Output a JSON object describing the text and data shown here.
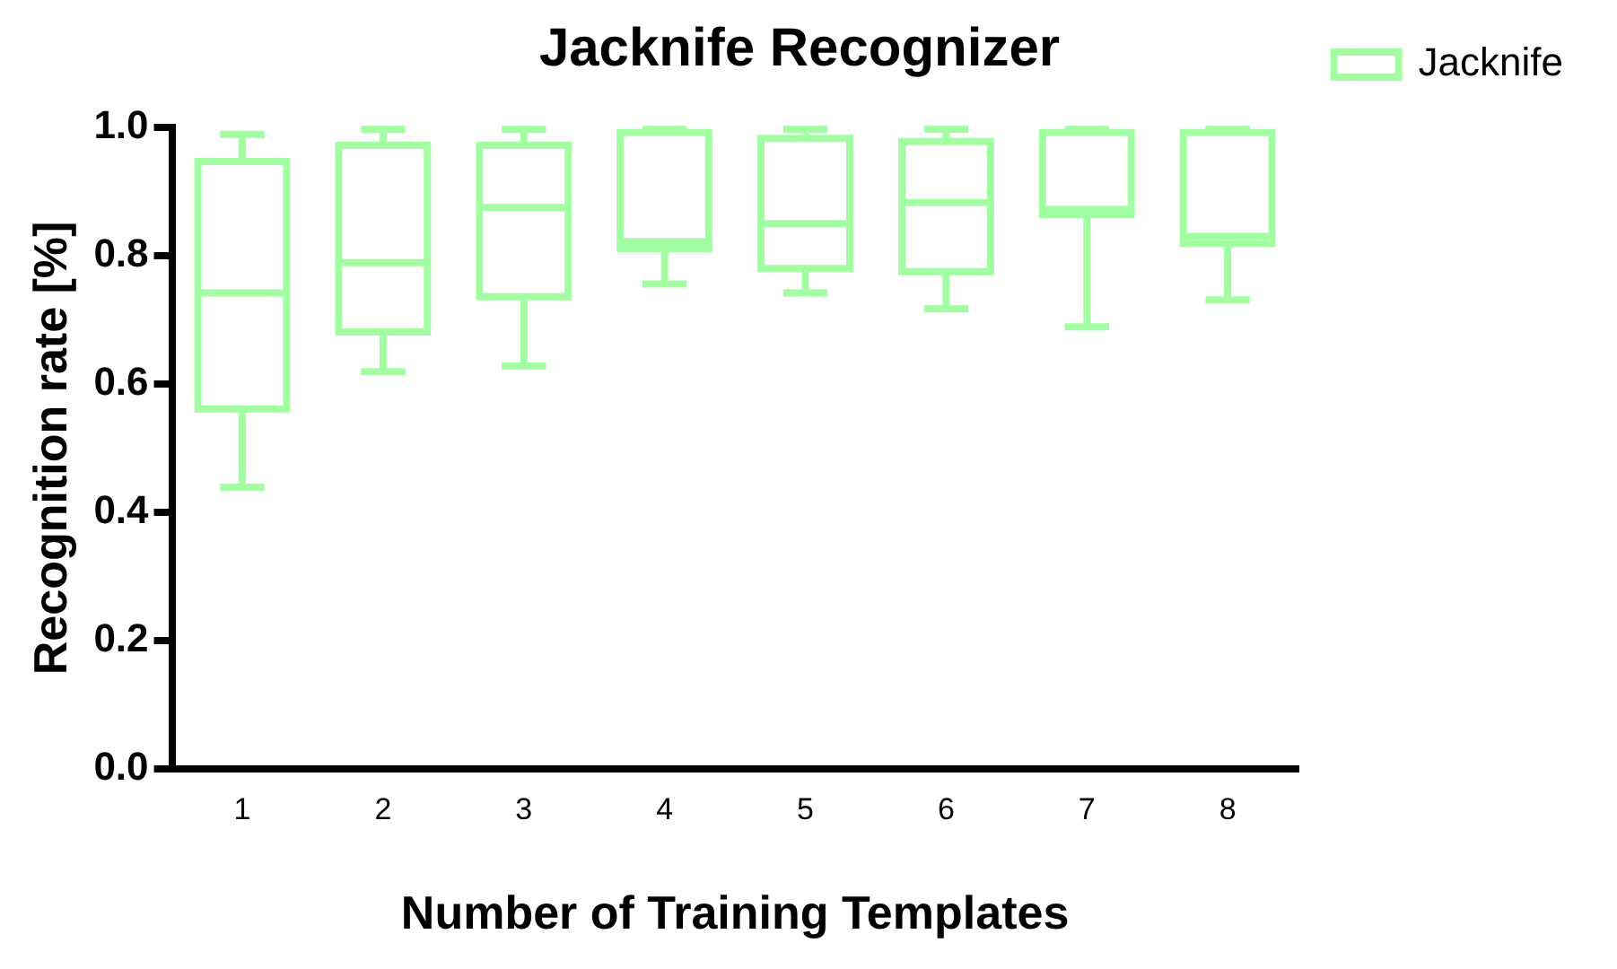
{
  "chart_data": {
    "type": "box",
    "title": "Jacknife Recognizer",
    "xlabel": "Number of Training Templates",
    "ylabel": "Recognition rate [%]",
    "categories": [
      "1",
      "2",
      "3",
      "4",
      "5",
      "6",
      "7",
      "8"
    ],
    "series": [
      {
        "name": "Jacknife",
        "color": "#a3fda3",
        "boxes": [
          {
            "low": 0.439,
            "q1": 0.561,
            "median": 0.742,
            "q3": 0.947,
            "high": 0.989
          },
          {
            "low": 0.619,
            "q1": 0.681,
            "median": 0.789,
            "q3": 0.972,
            "high": 0.997
          },
          {
            "low": 0.628,
            "q1": 0.736,
            "median": 0.875,
            "q3": 0.972,
            "high": 0.997
          },
          {
            "low": 0.756,
            "q1": 0.811,
            "median": 0.822,
            "q3": 0.992,
            "high": 0.997
          },
          {
            "low": 0.742,
            "q1": 0.78,
            "median": 0.85,
            "q3": 0.983,
            "high": 0.997
          },
          {
            "low": 0.717,
            "q1": 0.775,
            "median": 0.883,
            "q3": 0.978,
            "high": 0.997
          },
          {
            "low": 0.689,
            "q1": 0.864,
            "median": 0.872,
            "q3": 0.992,
            "high": 0.997
          },
          {
            "low": 0.731,
            "q1": 0.819,
            "median": 0.83,
            "q3": 0.992,
            "high": 0.997
          }
        ]
      }
    ],
    "ylim": [
      0,
      1
    ],
    "yticks": [
      {
        "value": 0,
        "label": "0.0"
      },
      {
        "value": 0.2,
        "label": "0.2"
      },
      {
        "value": 0.4,
        "label": "0.4"
      },
      {
        "value": 0.6,
        "label": "0.6"
      },
      {
        "value": 0.8,
        "label": "0.8"
      },
      {
        "value": 1,
        "label": "1.0"
      }
    ],
    "grid": false,
    "legend": "top right"
  }
}
